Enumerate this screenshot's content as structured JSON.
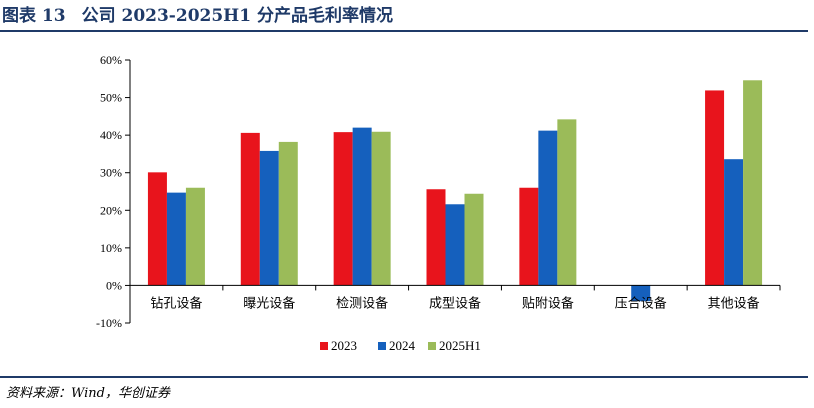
{
  "header": {
    "figure_no": "图表 13",
    "title": "公司 2023-2025H1 分产品毛利率情况"
  },
  "footer": {
    "source": "资料来源：Wind，华创证券"
  },
  "chart_data": {
    "type": "bar",
    "title": "公司 2023-2025H1 分产品毛利率情况",
    "xlabel": "",
    "ylabel": "",
    "categories": [
      "钻孔设备",
      "曝光设备",
      "检测设备",
      "成型设备",
      "贴附设备",
      "压合设备",
      "其他设备"
    ],
    "series": [
      {
        "name": "2023",
        "color": "#e8141c",
        "values": [
          30.1,
          40.6,
          40.8,
          25.6,
          26.0,
          null,
          51.9
        ]
      },
      {
        "name": "2024",
        "color": "#1560bd",
        "values": [
          24.7,
          35.8,
          42.0,
          21.6,
          41.2,
          -4.2,
          33.6
        ]
      },
      {
        "name": "2025H1",
        "color": "#9bbb59",
        "values": [
          26.0,
          38.2,
          40.9,
          24.4,
          44.2,
          null,
          54.6
        ]
      }
    ],
    "ylim": [
      -10,
      60
    ],
    "yticks": [
      -10,
      0,
      10,
      20,
      30,
      40,
      50,
      60
    ],
    "ytick_labels": [
      "-10%",
      "0%",
      "10%",
      "20%",
      "30%",
      "40%",
      "50%",
      "60%"
    ],
    "grid": false,
    "legend_position": "bottom-center"
  }
}
